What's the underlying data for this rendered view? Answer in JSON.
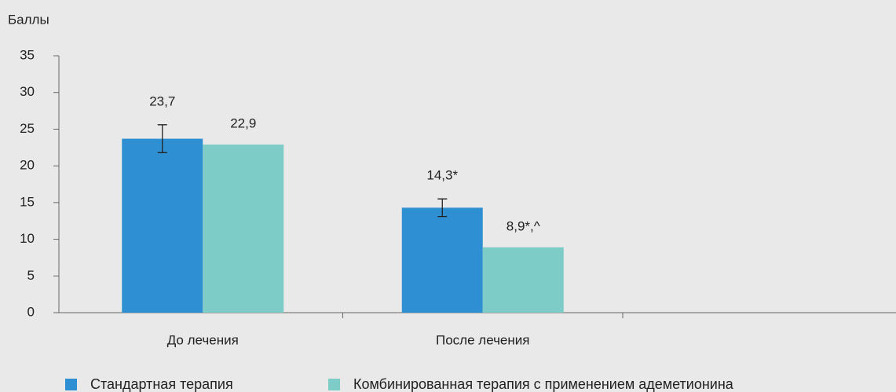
{
  "chart_data": {
    "type": "bar",
    "y_label": "Баллы",
    "categories": [
      "До лечения",
      "После лечения",
      null
    ],
    "series": [
      {
        "name": "Стандартная терапия",
        "color": "#2e8fd2",
        "values": [
          23.7,
          14.3,
          null
        ],
        "value_labels": [
          "23,7",
          "14,3*",
          null
        ],
        "errors": [
          1.9,
          1.2,
          null
        ]
      },
      {
        "name": "Комбинированная терапия с применением адеметионина",
        "color": "#7dccc8",
        "values": [
          22.9,
          8.9,
          null
        ],
        "value_labels": [
          "22,9",
          "8,9*,^",
          null
        ]
      }
    ],
    "ylim": [
      0,
      35
    ],
    "yticks": [
      0,
      5,
      10,
      15,
      20,
      25,
      30,
      35
    ],
    "grid": false
  }
}
